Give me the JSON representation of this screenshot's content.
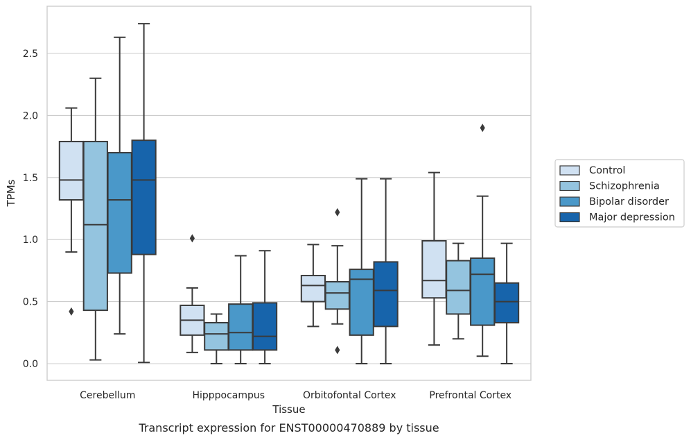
{
  "chart_data": {
    "type": "box",
    "caption": "Transcript expression for ENST00000470889 by tissue",
    "xlabel": "Tissue",
    "ylabel": "TPMs",
    "ylim": [
      -0.13,
      2.88
    ],
    "yticks": [
      0.0,
      0.5,
      1.0,
      1.5,
      2.0,
      2.5
    ],
    "ytick_labels": [
      "0.0",
      "0.5",
      "1.0",
      "1.5",
      "2.0",
      "2.5"
    ],
    "grid": "horizontal",
    "legend_position": "right",
    "categories": [
      "Cerebellum",
      "Hipppocampus",
      "Orbitofontal Cortex",
      "Prefrontal Cortex"
    ],
    "series": [
      {
        "name": "Control",
        "color": "#d0e1f2",
        "boxes": [
          {
            "whislo": 0.9,
            "q1": 1.32,
            "med": 1.48,
            "q3": 1.79,
            "whishi": 2.06,
            "fliers": [
              0.42
            ]
          },
          {
            "whislo": 0.09,
            "q1": 0.23,
            "med": 0.35,
            "q3": 0.47,
            "whishi": 0.61,
            "fliers": [
              1.01
            ]
          },
          {
            "whislo": 0.3,
            "q1": 0.5,
            "med": 0.63,
            "q3": 0.71,
            "whishi": 0.96,
            "fliers": []
          },
          {
            "whislo": 0.15,
            "q1": 0.53,
            "med": 0.67,
            "q3": 0.99,
            "whishi": 1.54,
            "fliers": []
          }
        ]
      },
      {
        "name": "Schizophrenia",
        "color": "#94c4df",
        "boxes": [
          {
            "whislo": 0.03,
            "q1": 0.43,
            "med": 1.12,
            "q3": 1.79,
            "whishi": 2.3,
            "fliers": []
          },
          {
            "whislo": 0.0,
            "q1": 0.11,
            "med": 0.24,
            "q3": 0.33,
            "whishi": 0.4,
            "fliers": []
          },
          {
            "whislo": 0.32,
            "q1": 0.44,
            "med": 0.57,
            "q3": 0.66,
            "whishi": 0.95,
            "fliers": [
              1.22,
              0.11
            ]
          },
          {
            "whislo": 0.2,
            "q1": 0.4,
            "med": 0.59,
            "q3": 0.83,
            "whishi": 0.97,
            "fliers": []
          }
        ]
      },
      {
        "name": "Bipolar disorder",
        "color": "#4a98c9",
        "boxes": [
          {
            "whislo": 0.24,
            "q1": 0.73,
            "med": 1.32,
            "q3": 1.7,
            "whishi": 2.63,
            "fliers": []
          },
          {
            "whislo": 0.0,
            "q1": 0.11,
            "med": 0.25,
            "q3": 0.48,
            "whishi": 0.87,
            "fliers": []
          },
          {
            "whislo": 0.0,
            "q1": 0.23,
            "med": 0.68,
            "q3": 0.76,
            "whishi": 1.49,
            "fliers": []
          },
          {
            "whislo": 0.06,
            "q1": 0.31,
            "med": 0.72,
            "q3": 0.85,
            "whishi": 1.35,
            "fliers": [
              1.9
            ]
          }
        ]
      },
      {
        "name": "Major depression",
        "color": "#1764ab",
        "boxes": [
          {
            "whislo": 0.01,
            "q1": 0.88,
            "med": 1.48,
            "q3": 1.8,
            "whishi": 2.74,
            "fliers": []
          },
          {
            "whislo": 0.0,
            "q1": 0.11,
            "med": 0.22,
            "q3": 0.49,
            "whishi": 0.91,
            "fliers": []
          },
          {
            "whislo": 0.0,
            "q1": 0.3,
            "med": 0.59,
            "q3": 0.82,
            "whishi": 1.49,
            "fliers": []
          },
          {
            "whislo": 0.0,
            "q1": 0.33,
            "med": 0.5,
            "q3": 0.65,
            "whishi": 0.97,
            "fliers": []
          }
        ]
      }
    ]
  }
}
